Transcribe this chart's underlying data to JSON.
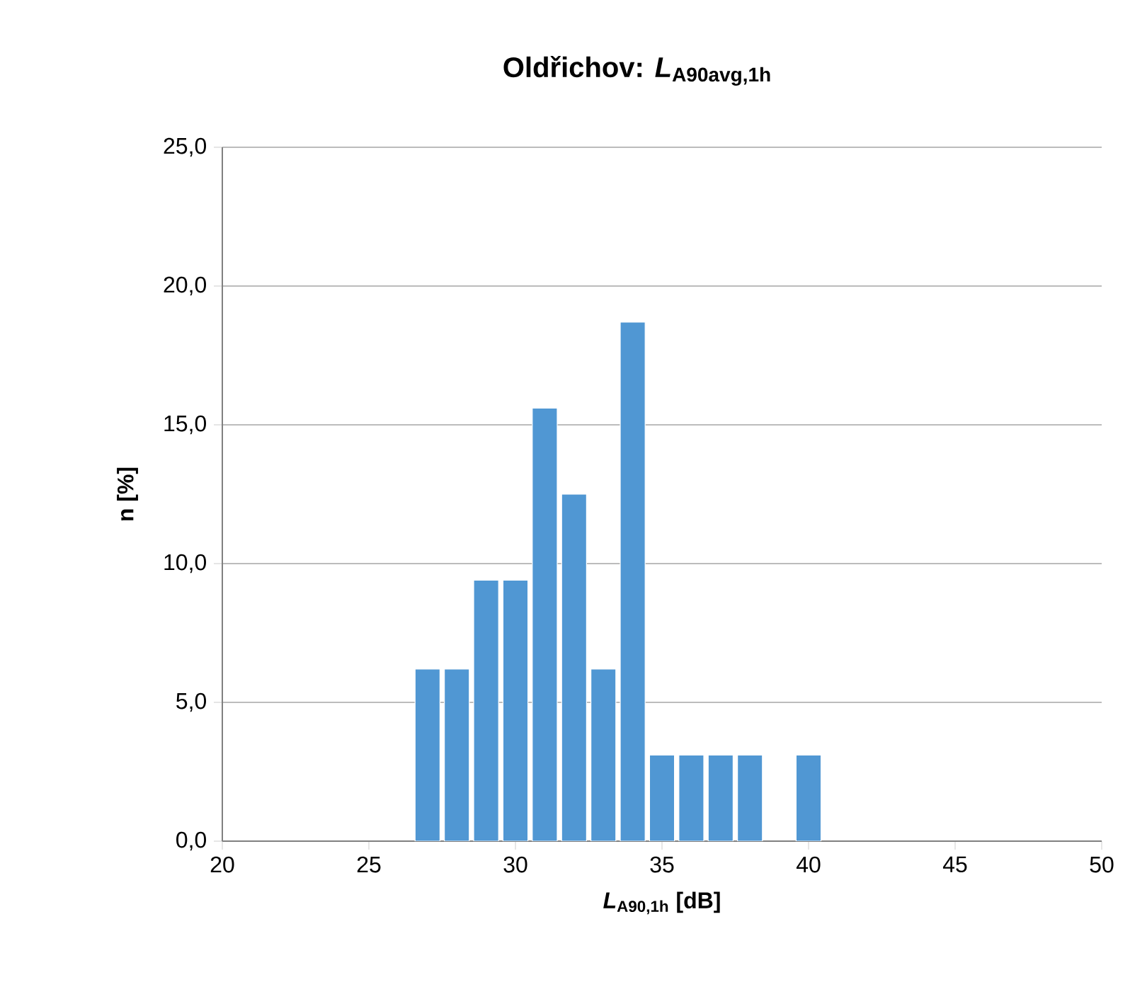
{
  "chart_data": {
    "type": "bar",
    "title": "Oldřichov: *L*$_{A90avg,1h}$",
    "xlabel": "*L*$_{A90,1h}$ [dB]",
    "ylabel": "n  [%]",
    "x": [
      27,
      28,
      29,
      30,
      31,
      32,
      33,
      34,
      35,
      36,
      37,
      38,
      40
    ],
    "values": [
      6.2,
      6.2,
      9.4,
      9.4,
      15.6,
      12.5,
      6.2,
      18.7,
      3.1,
      3.1,
      3.1,
      3.1,
      3.1
    ],
    "color": "#5097d3",
    "xlim": [
      20,
      50
    ],
    "xticks": [
      20,
      25,
      30,
      35,
      40,
      45,
      50
    ],
    "ylim": [
      0,
      25
    ],
    "yticks": [
      {
        "value": 0,
        "label": "0,0"
      },
      {
        "value": 5,
        "label": "5,0"
      },
      {
        "value": 10,
        "label": "10,0"
      },
      {
        "value": 15,
        "label": "15,0"
      },
      {
        "value": 20,
        "label": "20,0"
      },
      {
        "value": 25,
        "label": "25,0"
      }
    ],
    "grid": "y"
  }
}
